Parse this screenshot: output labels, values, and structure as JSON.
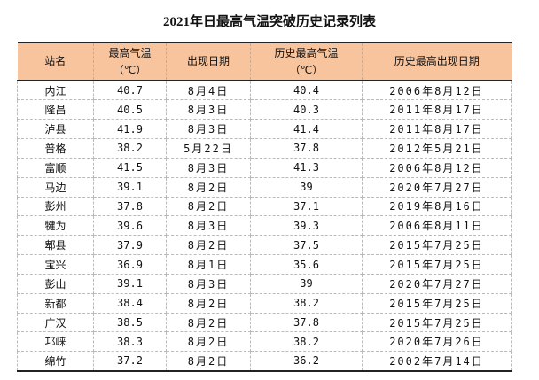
{
  "title": "2021年日最高气温突破历史记录列表",
  "columns": [
    "站名",
    "最高气温\n（℃）",
    "出现日期",
    "历史最高气温\n（℃）",
    "历史最高出现日期"
  ],
  "header": {
    "c1": "站名",
    "c2a": "最高气温",
    "c2b": "（℃）",
    "c3": "出现日期",
    "c4a": "历史最高气温",
    "c4b": "（℃）",
    "c5": "历史最高出现日期"
  },
  "header_color": "#f8c49e",
  "rows": [
    [
      "内江",
      "40.7",
      "8月4日",
      "40.4",
      "2006年8月12日"
    ],
    [
      "隆昌",
      "40.5",
      "8月3日",
      "40.3",
      "2011年8月17日"
    ],
    [
      "泸县",
      "41.9",
      "8月3日",
      "41.4",
      "2011年8月17日"
    ],
    [
      "普格",
      "38.2",
      "5月22日",
      "37.8",
      "2012年5月21日"
    ],
    [
      "富顺",
      "41.5",
      "8月3日",
      "41.3",
      "2006年8月12日"
    ],
    [
      "马边",
      "39.1",
      "8月2日",
      "39",
      "2020年7月27日"
    ],
    [
      "彭州",
      "37.8",
      "8月2日",
      "37.1",
      "2019年8月16日"
    ],
    [
      "犍为",
      "39.6",
      "8月3日",
      "39.3",
      "2006年8月11日"
    ],
    [
      "郫县",
      "37.9",
      "8月2日",
      "37.5",
      "2015年7月25日"
    ],
    [
      "宝兴",
      "36.9",
      "8月1日",
      "35.6",
      "2015年7月25日"
    ],
    [
      "彭山",
      "39.1",
      "8月3日",
      "39",
      "2020年7月27日"
    ],
    [
      "新都",
      "38.4",
      "8月2日",
      "38.2",
      "2015年7月25日"
    ],
    [
      "广汉",
      "38.5",
      "8月2日",
      "37.8",
      "2015年7月25日"
    ],
    [
      "邛崃",
      "38.3",
      "8月2日",
      "38.2",
      "2020年7月26日"
    ],
    [
      "绵竹",
      "37.2",
      "8月2日",
      "36.2",
      "2002年7月14日"
    ]
  ]
}
